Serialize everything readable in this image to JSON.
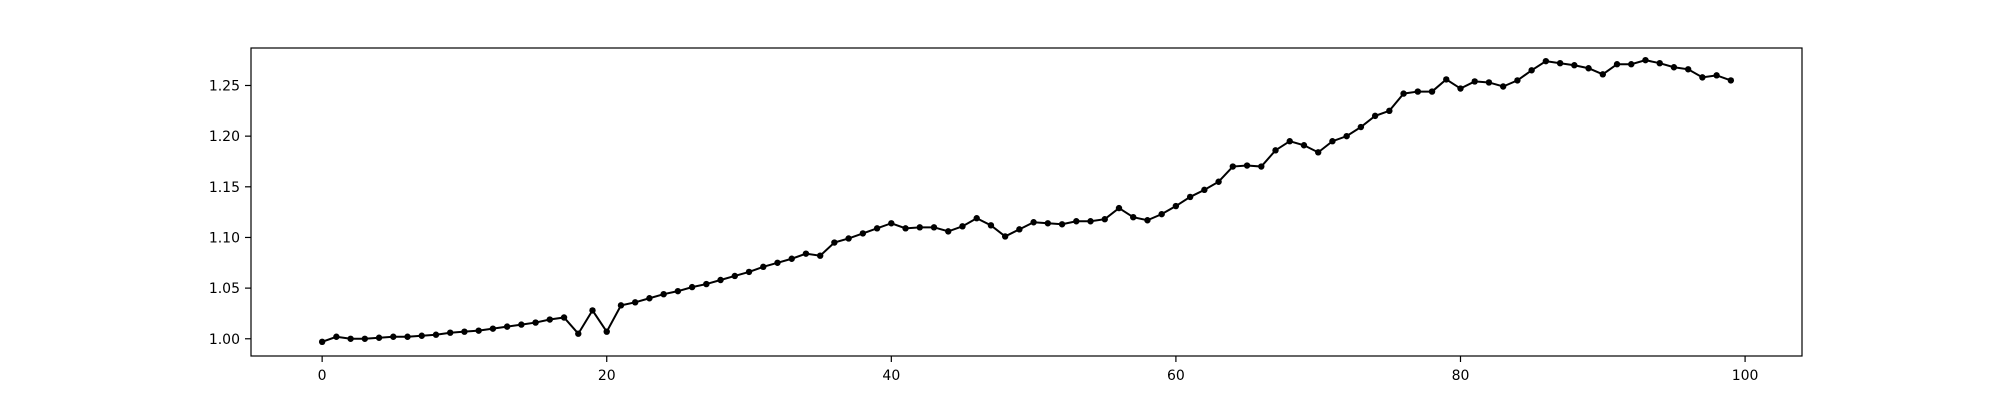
{
  "chart_data": {
    "type": "line",
    "title": "",
    "xlabel": "",
    "ylabel": "",
    "xlim": [
      -5,
      104
    ],
    "ylim": [
      0.983,
      1.287
    ],
    "grid": false,
    "legend": "none",
    "line_color": "#000000",
    "marker": "circle",
    "x_ticks": [
      0,
      20,
      40,
      60,
      80,
      100
    ],
    "x_tick_labels": [
      "0",
      "20",
      "40",
      "60",
      "80",
      "100"
    ],
    "y_ticks": [
      1.0,
      1.05,
      1.1,
      1.15,
      1.2,
      1.25
    ],
    "y_tick_labels": [
      "1.00",
      "1.05",
      "1.10",
      "1.15",
      "1.20",
      "1.25"
    ],
    "series": [
      {
        "x": [
          0,
          1,
          2,
          3,
          4,
          5,
          6,
          7,
          8,
          9,
          10,
          11,
          12,
          13,
          14,
          15,
          16,
          17,
          18,
          19,
          20,
          21,
          22,
          23,
          24,
          25,
          26,
          27,
          28,
          29,
          30,
          31,
          32,
          33,
          34,
          35,
          36,
          37,
          38,
          39,
          40,
          41,
          42,
          43,
          44,
          45,
          46,
          47,
          48,
          49,
          50,
          51,
          52,
          53,
          54,
          55,
          56,
          57,
          58,
          59,
          60,
          61,
          62,
          63,
          64,
          65,
          66,
          67,
          68,
          69,
          70,
          71,
          72,
          73,
          74,
          75,
          76,
          77,
          78,
          79,
          80,
          81,
          82,
          83,
          84,
          85,
          86,
          87,
          88,
          89,
          90,
          91,
          92,
          93,
          94,
          95,
          96,
          97,
          98,
          99
        ],
        "values": [
          0.997,
          1.002,
          1.0,
          1.0,
          1.001,
          1.002,
          1.002,
          1.003,
          1.004,
          1.006,
          1.007,
          1.008,
          1.01,
          1.012,
          1.014,
          1.016,
          1.019,
          1.021,
          1.005,
          1.028,
          1.007,
          1.033,
          1.036,
          1.04,
          1.044,
          1.047,
          1.051,
          1.054,
          1.058,
          1.062,
          1.066,
          1.071,
          1.075,
          1.079,
          1.084,
          1.082,
          1.095,
          1.099,
          1.104,
          1.109,
          1.114,
          1.109,
          1.11,
          1.11,
          1.106,
          1.111,
          1.119,
          1.112,
          1.101,
          1.108,
          1.115,
          1.114,
          1.113,
          1.116,
          1.116,
          1.118,
          1.129,
          1.12,
          1.117,
          1.123,
          1.131,
          1.14,
          1.147,
          1.155,
          1.17,
          1.171,
          1.17,
          1.186,
          1.195,
          1.191,
          1.184,
          1.195,
          1.2,
          1.209,
          1.22,
          1.225,
          1.242,
          1.244,
          1.244,
          1.256,
          1.247,
          1.254,
          1.253,
          1.249,
          1.255,
          1.265,
          1.274,
          1.272,
          1.27,
          1.267,
          1.261,
          1.271,
          1.271,
          1.275,
          1.272,
          1.268,
          1.266,
          1.258,
          1.26,
          1.255
        ]
      }
    ]
  }
}
